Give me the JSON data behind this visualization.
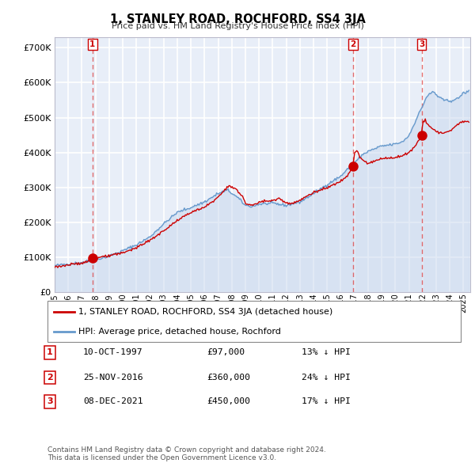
{
  "title": "1, STANLEY ROAD, ROCHFORD, SS4 3JA",
  "subtitle": "Price paid vs. HM Land Registry's House Price Index (HPI)",
  "ylabel_ticks": [
    "£0",
    "£100K",
    "£200K",
    "£300K",
    "£400K",
    "£500K",
    "£600K",
    "£700K"
  ],
  "ytick_values": [
    0,
    100000,
    200000,
    300000,
    400000,
    500000,
    600000,
    700000
  ],
  "ylim": [
    0,
    730000
  ],
  "xlim_start": 1995.3,
  "xlim_end": 2025.5,
  "background_color": "#e8eef8",
  "plot_bg_color": "#e8eef8",
  "grid_color": "#ffffff",
  "sale_color": "#cc0000",
  "hpi_color": "#6699cc",
  "hpi_fill_color": "#c8d8ee",
  "sale_label": "1, STANLEY ROAD, ROCHFORD, SS4 3JA (detached house)",
  "hpi_label": "HPI: Average price, detached house, Rochford",
  "transactions": [
    {
      "num": 1,
      "date": "10-OCT-1997",
      "price": 97000,
      "pct": "13%",
      "year": 1997.78
    },
    {
      "num": 2,
      "date": "25-NOV-2016",
      "price": 360000,
      "pct": "24%",
      "year": 2016.9
    },
    {
      "num": 3,
      "date": "08-DEC-2021",
      "price": 450000,
      "pct": "17%",
      "year": 2021.93
    }
  ],
  "footer": "Contains HM Land Registry data © Crown copyright and database right 2024.\nThis data is licensed under the Open Government Licence v3.0.",
  "xtick_years": [
    1995,
    1996,
    1997,
    1998,
    1999,
    2000,
    2001,
    2002,
    2003,
    2004,
    2005,
    2006,
    2007,
    2008,
    2009,
    2010,
    2011,
    2012,
    2013,
    2014,
    2015,
    2016,
    2017,
    2018,
    2019,
    2020,
    2021,
    2022,
    2023,
    2024,
    2025
  ]
}
